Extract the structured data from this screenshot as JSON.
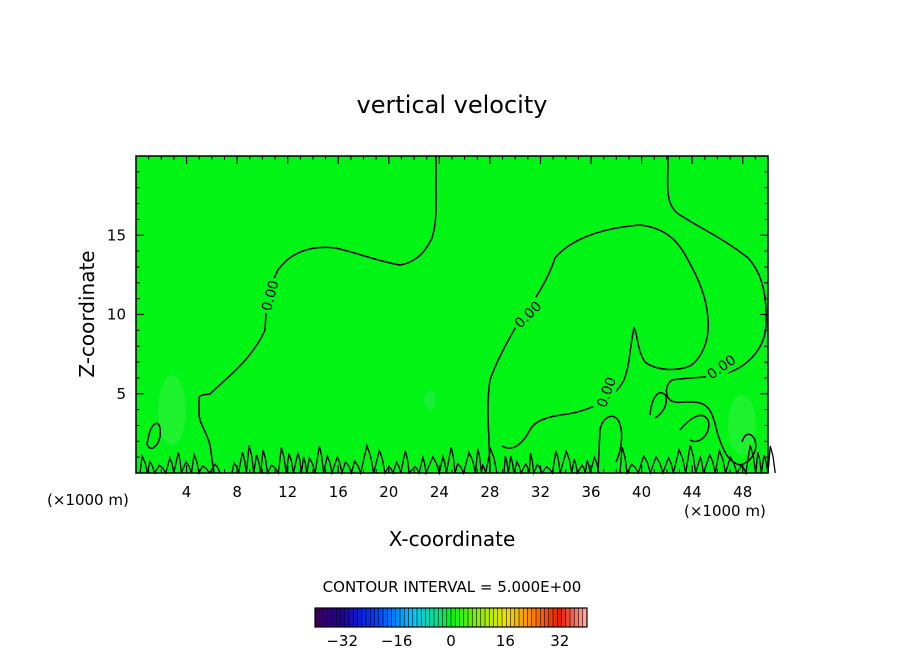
{
  "chart_data": {
    "type": "heatmap",
    "title": "vertical velocity",
    "xlabel": "X-coordinate",
    "ylabel": "Z-coordinate",
    "x_unit_left": "(×1000 m)",
    "x_unit_right": "(×1000 m)",
    "xlim": [
      0,
      50
    ],
    "ylim": [
      0,
      20
    ],
    "x_ticks": [
      4,
      8,
      12,
      16,
      20,
      24,
      28,
      32,
      36,
      40,
      44,
      48
    ],
    "y_ticks": [
      5,
      10,
      15
    ],
    "contour_interval_text": "CONTOUR INTERVAL = 5.000E+00",
    "contour_labels": [
      {
        "text": "0.00",
        "x": 10.6,
        "z": 11.2,
        "angle": -75
      },
      {
        "text": "0.00",
        "x": 31.0,
        "z": 10.0,
        "angle": -45
      },
      {
        "text": "0.00",
        "x": 37.2,
        "z": 5.1,
        "angle": -70
      },
      {
        "text": "0.00",
        "x": 46.3,
        "z": 6.7,
        "angle": -35
      }
    ],
    "colorbar": {
      "range": [
        -40,
        40
      ],
      "ticks": [
        -32,
        -16,
        0,
        16,
        32
      ]
    },
    "colors": {
      "field": "#00f515",
      "contour": "#000000"
    }
  }
}
